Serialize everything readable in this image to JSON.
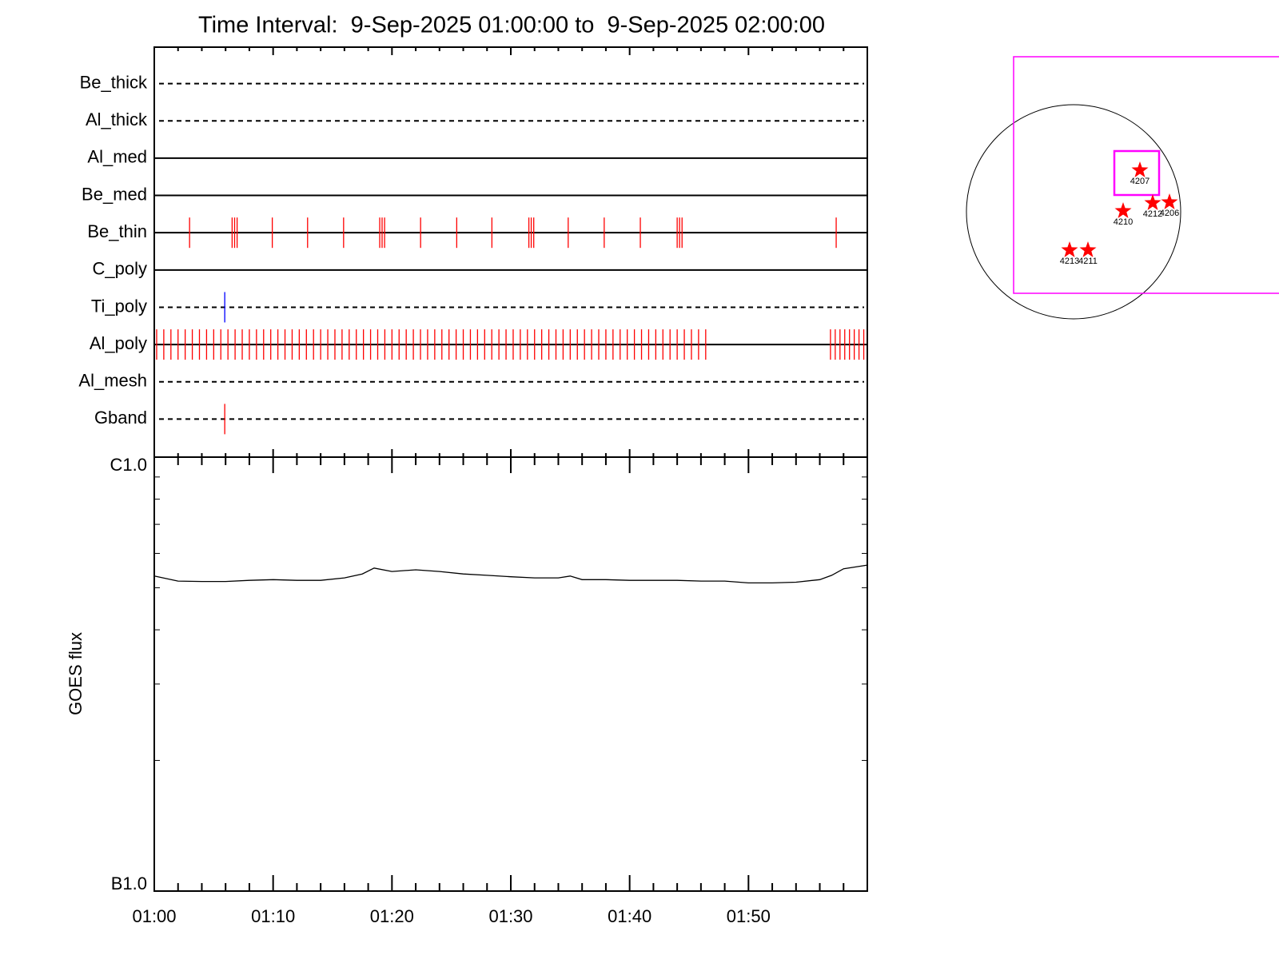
{
  "chart_data": [
    {
      "type": "event_timeline",
      "title": "Time Interval:  9-Sep-2025 01:00:00 to  9-Sep-2025 02:00:00",
      "xlim": [
        0,
        60
      ],
      "xticks": [
        0,
        10,
        20,
        30,
        40,
        50
      ],
      "xminorticks": [
        2,
        4,
        6,
        8,
        12,
        14,
        16,
        18,
        22,
        24,
        26,
        28,
        32,
        34,
        36,
        38,
        42,
        44,
        46,
        48,
        52,
        54,
        56,
        58
      ],
      "rows": [
        {
          "label": "Be_thick",
          "dashed": true,
          "event_color": "#ff0000",
          "events": []
        },
        {
          "label": "Al_thick",
          "dashed": true,
          "event_color": "#ff0000",
          "events": []
        },
        {
          "label": "Al_med",
          "dashed": false,
          "event_color": "#ff0000",
          "events": []
        },
        {
          "label": "Be_med",
          "dashed": false,
          "event_color": "#ff0000",
          "events": []
        },
        {
          "label": "Be_thin",
          "dashed": false,
          "event_color": "#ff0000",
          "events": [
            2.97,
            6.55,
            6.76,
            6.97,
            9.93,
            12.9,
            15.93,
            18.97,
            19.17,
            19.38,
            22.41,
            25.45,
            28.41,
            31.52,
            31.72,
            31.93,
            34.83,
            37.86,
            40.9,
            44.0,
            44.2,
            44.41,
            57.38
          ]
        },
        {
          "label": "C_poly",
          "dashed": false,
          "event_color": "#ff0000",
          "events": []
        },
        {
          "label": "Ti_poly",
          "dashed": true,
          "event_color": "#0000ff",
          "events": [
            5.93
          ]
        },
        {
          "label": "Al_poly",
          "dashed": false,
          "event_color": "#ff0000",
          "events": [
            0.2,
            0.8,
            1.4,
            2.0,
            2.6,
            3.2,
            3.8,
            4.4,
            5.0,
            5.6,
            6.2,
            6.8,
            7.4,
            8.0,
            8.6,
            9.2,
            9.8,
            10.4,
            11.0,
            11.6,
            12.2,
            12.8,
            13.4,
            14.0,
            14.6,
            15.2,
            15.8,
            16.4,
            17.0,
            17.6,
            18.2,
            18.8,
            19.4,
            20.0,
            20.6,
            21.2,
            21.8,
            22.4,
            23.0,
            23.6,
            24.2,
            24.8,
            25.4,
            26.0,
            26.6,
            27.2,
            27.8,
            28.4,
            29.0,
            29.6,
            30.2,
            30.8,
            31.4,
            32.0,
            32.6,
            33.2,
            33.8,
            34.4,
            35.0,
            35.6,
            36.2,
            36.8,
            37.4,
            38.0,
            38.6,
            39.2,
            39.8,
            40.4,
            41.0,
            41.6,
            42.2,
            42.8,
            43.4,
            44.0,
            44.6,
            45.2,
            45.8,
            46.4,
            56.9,
            57.3,
            57.7,
            58.1,
            58.5,
            58.9,
            59.3,
            59.7
          ]
        },
        {
          "label": "Al_mesh",
          "dashed": true,
          "event_color": "#ff0000",
          "events": []
        },
        {
          "label": "Gband",
          "dashed": true,
          "event_color": "#ff0000",
          "events": [
            5.93
          ]
        }
      ]
    },
    {
      "type": "line",
      "ylabel": "GOES flux",
      "log_scale": true,
      "color": "#000000",
      "xlim": [
        0,
        60
      ],
      "xticks": [
        {
          "value": 0,
          "label": "01:00"
        },
        {
          "value": 10,
          "label": "01:10"
        },
        {
          "value": 20,
          "label": "01:20"
        },
        {
          "value": 30,
          "label": "01:30"
        },
        {
          "value": 40,
          "label": "01:40"
        },
        {
          "value": 50,
          "label": "01:50"
        }
      ],
      "xminorticks": [
        2,
        4,
        6,
        8,
        12,
        14,
        16,
        18,
        22,
        24,
        26,
        28,
        32,
        34,
        36,
        38,
        42,
        44,
        46,
        48,
        52,
        54,
        56,
        58
      ],
      "ylim": [
        1e-07,
        1e-06
      ],
      "yticks": [
        {
          "value": 1e-07,
          "label": "B1.0"
        },
        {
          "value": 1e-06,
          "label": "C1.0"
        }
      ],
      "yminorticks": [
        2e-07,
        3e-07,
        4e-07,
        5e-07,
        6e-07,
        7e-07,
        8e-07,
        9e-07
      ],
      "x": [
        0,
        2,
        4,
        6,
        8,
        10,
        12,
        14,
        16,
        17.5,
        18.5,
        20,
        22,
        24,
        26,
        28,
        30,
        32,
        34,
        35,
        36,
        38,
        40,
        42,
        44,
        46,
        48,
        50,
        52,
        54,
        56,
        57,
        58,
        60
      ],
      "values": [
        5.32e-07,
        5.18e-07,
        5.17e-07,
        5.17e-07,
        5.2e-07,
        5.22e-07,
        5.2e-07,
        5.2e-07,
        5.27e-07,
        5.38e-07,
        5.55e-07,
        5.45e-07,
        5.5e-07,
        5.45e-07,
        5.38e-07,
        5.34e-07,
        5.3e-07,
        5.27e-07,
        5.27e-07,
        5.32e-07,
        5.22e-07,
        5.22e-07,
        5.2e-07,
        5.2e-07,
        5.2e-07,
        5.18e-07,
        5.18e-07,
        5.13e-07,
        5.13e-07,
        5.15e-07,
        5.22e-07,
        5.34e-07,
        5.53e-07,
        5.64e-07
      ]
    },
    {
      "type": "disk",
      "regions": [
        "4207",
        "4210",
        "4212",
        "4206",
        "4213",
        "4211"
      ]
    }
  ]
}
